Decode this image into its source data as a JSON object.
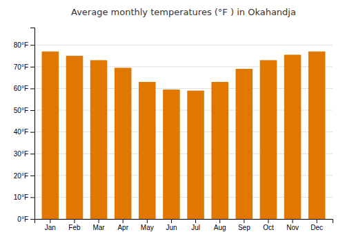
{
  "chart_data": {
    "type": "bar",
    "title": "Average monthly temperatures (°F ) in Okahandja",
    "categories": [
      "Jan",
      "Feb",
      "Mar",
      "Apr",
      "May",
      "Jun",
      "Jul",
      "Aug",
      "Sep",
      "Oct",
      "Nov",
      "Dec"
    ],
    "values": [
      77,
      75,
      73,
      69.5,
      63,
      59.5,
      59,
      63,
      69,
      73,
      75.5,
      77
    ],
    "color": "#E07800",
    "ylim": [
      0,
      88
    ],
    "yticks": [
      {
        "value": 0,
        "label": "0°F"
      },
      {
        "value": 10,
        "label": "10°F"
      },
      {
        "value": 20,
        "label": "20°F"
      },
      {
        "value": 30,
        "label": "30°F"
      },
      {
        "value": 40,
        "label": "40°F"
      },
      {
        "value": 50,
        "label": "50°F"
      },
      {
        "value": 60,
        "label": "60°F"
      },
      {
        "value": 70,
        "label": "70°F"
      },
      {
        "value": 80,
        "label": "80°F"
      }
    ],
    "grid": true
  }
}
